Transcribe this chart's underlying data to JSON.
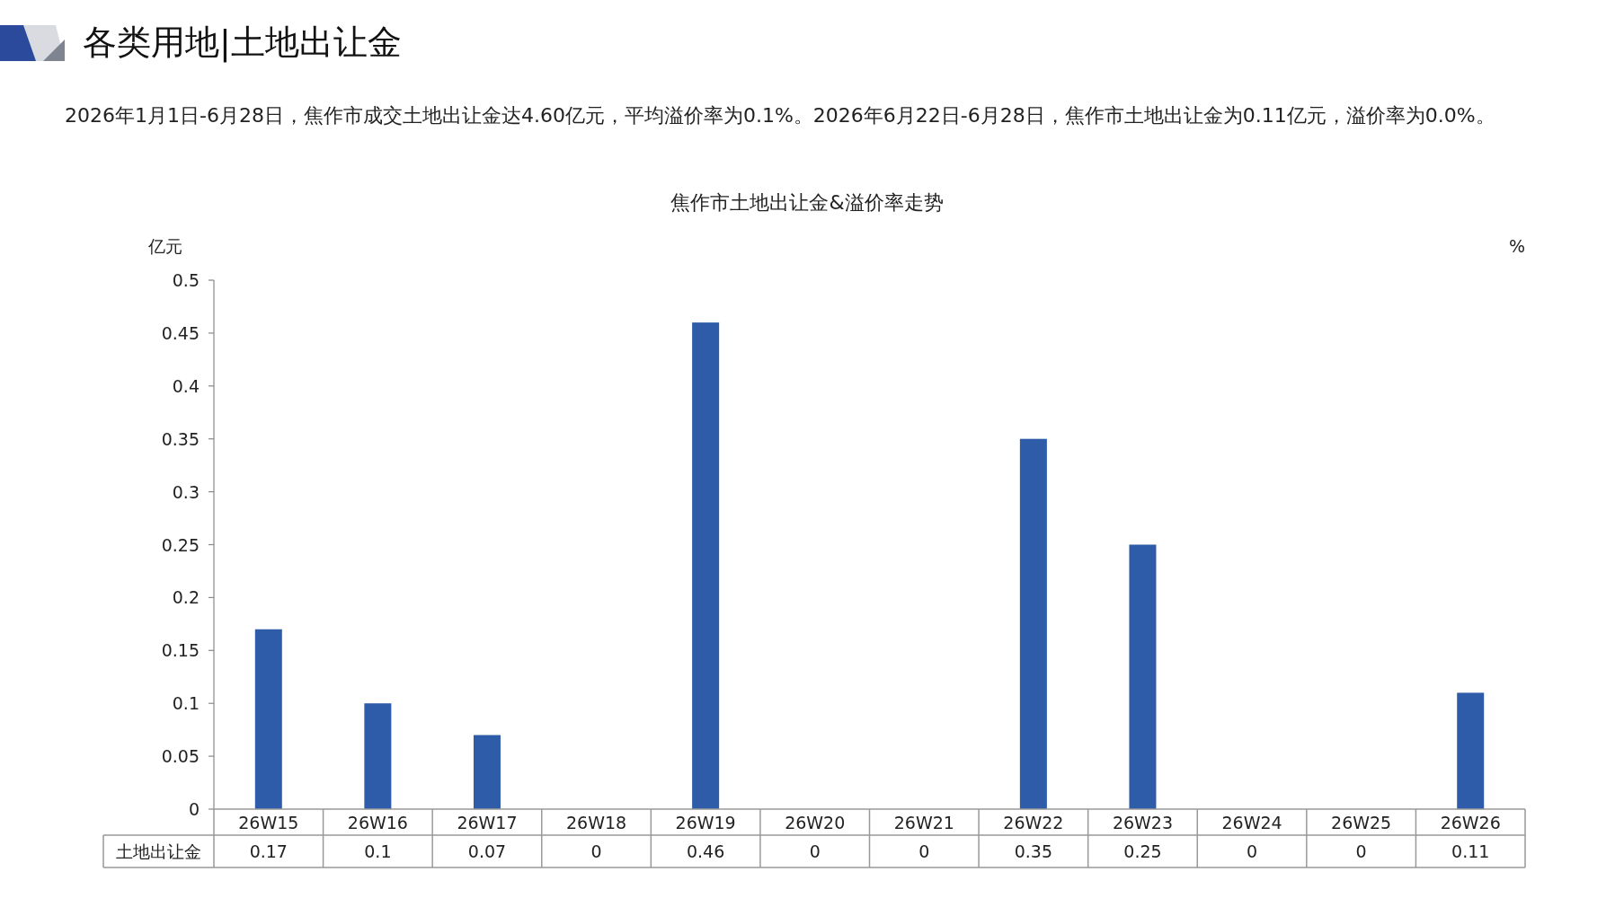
{
  "chart_data": {
    "type": "bar",
    "title": "各类用地|土地出让金",
    "subtitle": "焦作市土地出让金&溢价率走势",
    "annotations": [
      "2026年1月1日-6月28日，焦作市成交土地出让金达4.60亿元，平均溢价率为0.1%。2026年6月22日-6月28日，焦作市土地出让金为0.11亿元，溢价率为0.0%。"
    ],
    "ylabel": "亿元",
    "y2label": "%",
    "categories": [
      "26W15",
      "26W16",
      "26W17",
      "26W18",
      "26W19",
      "26W20",
      "26W21",
      "26W22",
      "26W23",
      "26W24",
      "26W25",
      "26W26"
    ],
    "series": [
      {
        "name": "土地出让金",
        "color": "#2e5ca8",
        "values": [
          0.17,
          0.1,
          0.07,
          0,
          0.46,
          0,
          0,
          0.35,
          0.25,
          0,
          0,
          0.11
        ]
      }
    ],
    "ylim": [
      0,
      0.5
    ],
    "yticks": [
      0,
      0.05,
      0.1,
      0.15,
      0.2,
      0.25,
      0.3,
      0.35,
      0.4,
      0.45,
      0.5
    ],
    "grid": false,
    "data_labels": true
  }
}
